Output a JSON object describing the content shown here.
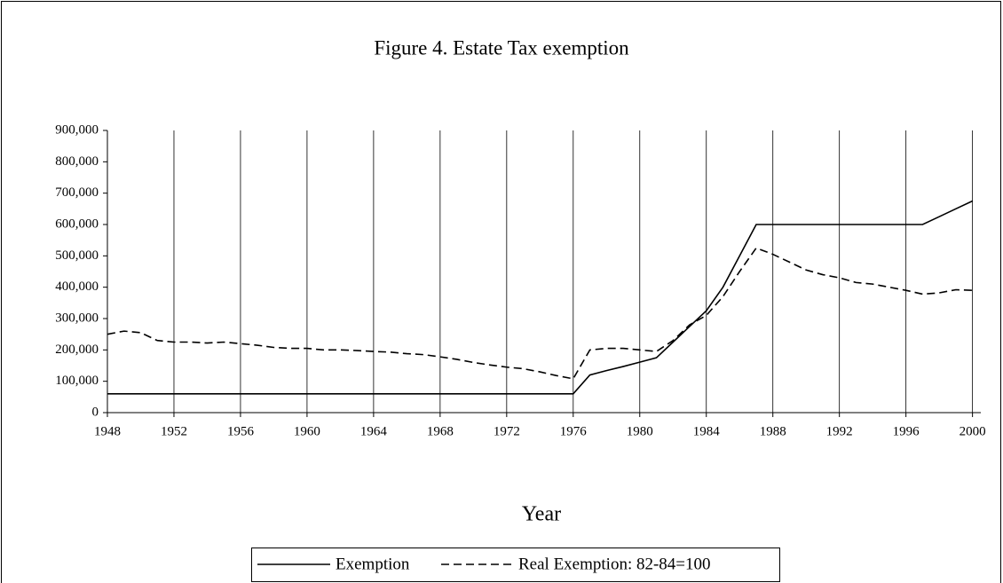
{
  "chart_data": {
    "type": "line",
    "title": "Figure 4. Estate Tax exemption",
    "x_label": "Year",
    "x": [
      1948,
      1949,
      1950,
      1951,
      1952,
      1953,
      1954,
      1955,
      1956,
      1957,
      1958,
      1959,
      1960,
      1961,
      1962,
      1963,
      1964,
      1965,
      1966,
      1967,
      1968,
      1969,
      1970,
      1971,
      1972,
      1973,
      1974,
      1975,
      1976,
      1977,
      1978,
      1979,
      1980,
      1981,
      1982,
      1983,
      1984,
      1985,
      1986,
      1987,
      1988,
      1989,
      1990,
      1991,
      1992,
      1993,
      1994,
      1995,
      1996,
      1997,
      1998,
      1999,
      2000
    ],
    "series": [
      {
        "name": "Exemption",
        "color": "#000000",
        "dash": "solid",
        "values": [
          60000,
          60000,
          60000,
          60000,
          60000,
          60000,
          60000,
          60000,
          60000,
          60000,
          60000,
          60000,
          60000,
          60000,
          60000,
          60000,
          60000,
          60000,
          60000,
          60000,
          60000,
          60000,
          60000,
          60000,
          60000,
          60000,
          60000,
          60000,
          60000,
          120000,
          134000,
          147000,
          161000,
          175000,
          225000,
          275000,
          325000,
          400000,
          500000,
          600000,
          600000,
          600000,
          600000,
          600000,
          600000,
          600000,
          600000,
          600000,
          600000,
          600000,
          625000,
          650000,
          675000
        ]
      },
      {
        "name": "Real Exemption: 82-84=100",
        "color": "#000000",
        "dash": "dashed",
        "values": [
          250000,
          260000,
          255000,
          230000,
          225000,
          225000,
          222000,
          225000,
          220000,
          215000,
          208000,
          205000,
          205000,
          200000,
          200000,
          198000,
          195000,
          193000,
          188000,
          185000,
          178000,
          170000,
          160000,
          152000,
          145000,
          140000,
          130000,
          118000,
          108000,
          200000,
          205000,
          205000,
          200000,
          195000,
          230000,
          280000,
          310000,
          370000,
          450000,
          525000,
          505000,
          480000,
          455000,
          440000,
          430000,
          415000,
          410000,
          400000,
          390000,
          378000,
          382000,
          392000,
          390000
        ]
      }
    ],
    "xlim": [
      1948,
      2000.5
    ],
    "xticks": [
      1948,
      1952,
      1956,
      1960,
      1964,
      1968,
      1972,
      1976,
      1980,
      1984,
      1988,
      1992,
      1996,
      2000
    ],
    "ylim": [
      0,
      900000
    ],
    "yticks": [
      0,
      {
        "value": 100000,
        "label": "100,000"
      },
      {
        "value": 200000,
        "label": "200,000"
      },
      {
        "value": 300000,
        "label": "300,000"
      },
      {
        "value": 400000,
        "label": "400,000"
      },
      {
        "value": 500000,
        "label": "500,000"
      },
      {
        "value": 600000,
        "label": "600,000"
      },
      {
        "value": 700000,
        "label": "700,000"
      },
      {
        "value": 800000,
        "label": "800,000"
      },
      {
        "value": 900000,
        "label": "900,000"
      }
    ],
    "x_grid": true,
    "legend": "bottom"
  }
}
